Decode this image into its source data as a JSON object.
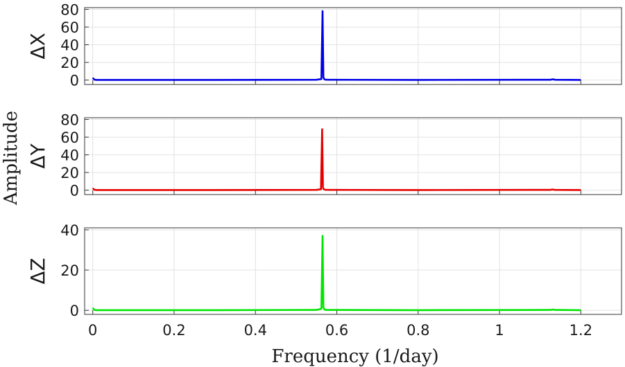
{
  "chart_data": {
    "type": "line",
    "shared_ylabel": "Amplitude",
    "xlabel": "Frequency (1/day)",
    "xlim": [
      -0.02,
      1.3
    ],
    "xticks": [
      0,
      0.2,
      0.4,
      0.6,
      0.8,
      1,
      1.2
    ],
    "xtick_labels": [
      "0",
      "0.2",
      "0.4",
      "0.6",
      "0.8",
      "1",
      "1.2"
    ],
    "grid": true,
    "panels": [
      {
        "label": "ΔX",
        "color": "#0000e6",
        "ylim": [
          -5,
          82
        ],
        "yticks": [
          0,
          20,
          40,
          60,
          80
        ],
        "ytick_labels": [
          "0",
          "20",
          "40",
          "60",
          "80"
        ],
        "x": [
          0,
          0.002,
          0.004,
          0.01,
          0.3,
          0.55,
          0.562,
          0.565,
          0.567,
          0.569,
          0.572,
          0.58,
          0.8,
          1.125,
          1.131,
          1.137,
          1.2
        ],
        "y": [
          2.5,
          1.5,
          0.4,
          0.2,
          0.2,
          0.3,
          1.2,
          78,
          3,
          1.2,
          0.4,
          0.3,
          0.2,
          0.3,
          0.9,
          0.3,
          0.2
        ]
      },
      {
        "label": "ΔY",
        "color": "#e60000",
        "ylim": [
          -5,
          82
        ],
        "yticks": [
          0,
          20,
          40,
          60,
          80
        ],
        "ytick_labels": [
          "0",
          "20",
          "40",
          "60",
          "80"
        ],
        "x": [
          0,
          0.002,
          0.004,
          0.01,
          0.3,
          0.55,
          0.561,
          0.564,
          0.566,
          0.568,
          0.572,
          0.58,
          0.8,
          1.125,
          1.13,
          1.136,
          1.2
        ],
        "y": [
          2.2,
          1.3,
          0.4,
          0.2,
          0.2,
          0.3,
          1.0,
          69,
          2.5,
          1.0,
          0.4,
          0.3,
          0.2,
          0.3,
          0.8,
          0.3,
          0.2
        ]
      },
      {
        "label": "ΔZ",
        "color": "#00e600",
        "ylim": [
          -2,
          41
        ],
        "yticks": [
          0,
          20,
          40
        ],
        "ytick_labels": [
          "0",
          "20",
          "40"
        ],
        "x": [
          0,
          0.002,
          0.004,
          0.01,
          0.3,
          0.55,
          0.562,
          0.565,
          0.567,
          0.569,
          0.572,
          0.58,
          0.8,
          1.125,
          1.131,
          1.137,
          1.2
        ],
        "y": [
          1.2,
          0.7,
          0.2,
          0.1,
          0.1,
          0.2,
          0.8,
          37,
          1.5,
          0.6,
          0.2,
          0.2,
          0.1,
          0.2,
          0.4,
          0.2,
          0.1
        ]
      }
    ]
  }
}
